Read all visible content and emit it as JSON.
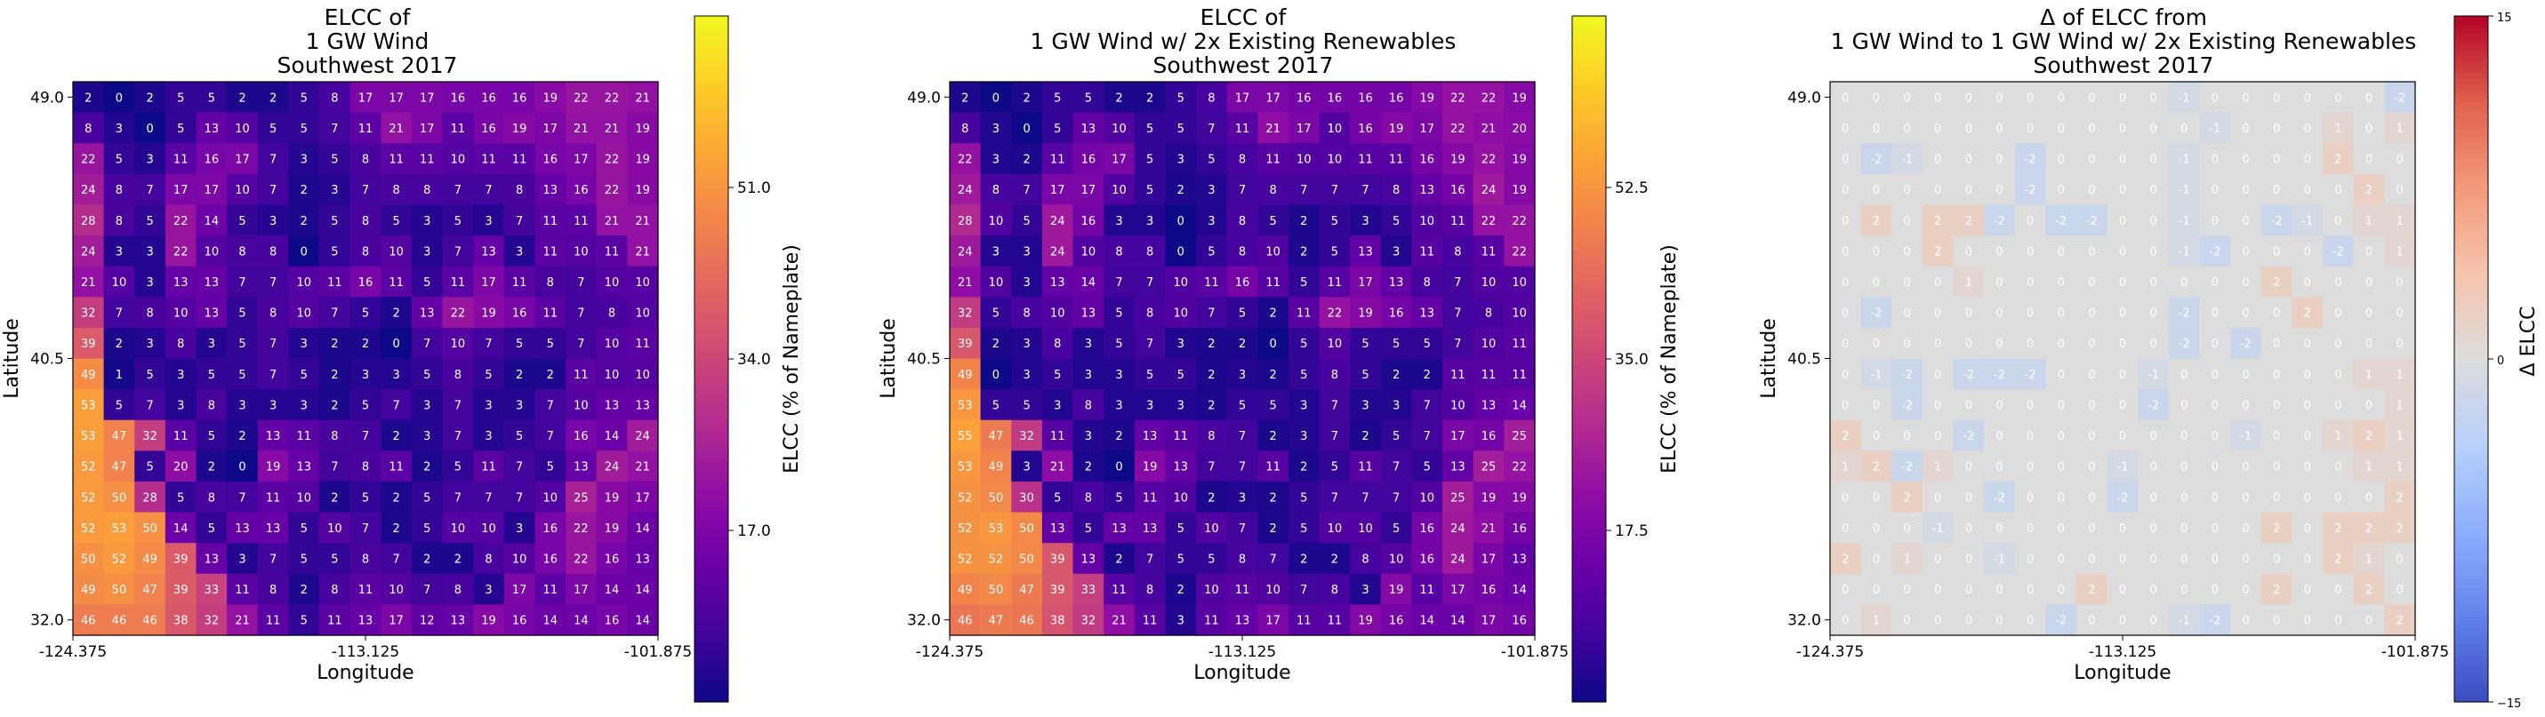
{
  "chart_data": [
    {
      "type": "heatmap",
      "title": [
        "ELCC of",
        "1 GW Wind",
        "Southwest 2017"
      ],
      "xlabel": "Longitude",
      "ylabel": "Latitude",
      "x_ticks": [
        "-124.375",
        "-113.125",
        "-101.875"
      ],
      "y_ticks": [
        "49.0",
        "40.5",
        "32.0"
      ],
      "colormap": "plasma",
      "colorbar": {
        "label": "ELCC (% of Nameplate)",
        "range": [
          0,
          68
        ],
        "ticks": [
          "17.0",
          "34.0",
          "51.0"
        ]
      },
      "rows": [
        [
          2,
          0,
          2,
          5,
          5,
          2,
          2,
          5,
          8,
          17,
          17,
          17,
          16,
          16,
          16,
          19,
          22,
          22,
          21
        ],
        [
          8,
          3,
          0,
          5,
          13,
          10,
          5,
          5,
          7,
          11,
          21,
          17,
          11,
          16,
          19,
          17,
          21,
          21,
          19
        ],
        [
          22,
          5,
          3,
          11,
          16,
          17,
          7,
          3,
          5,
          8,
          11,
          11,
          10,
          11,
          11,
          16,
          17,
          22,
          19
        ],
        [
          24,
          8,
          7,
          17,
          17,
          10,
          7,
          2,
          3,
          7,
          8,
          8,
          7,
          7,
          8,
          13,
          16,
          22,
          19
        ],
        [
          28,
          8,
          5,
          22,
          14,
          5,
          3,
          2,
          5,
          8,
          5,
          3,
          5,
          3,
          7,
          11,
          11,
          21,
          21
        ],
        [
          24,
          3,
          3,
          22,
          10,
          8,
          8,
          0,
          5,
          8,
          10,
          3,
          7,
          13,
          3,
          11,
          10,
          11,
          21
        ],
        [
          21,
          10,
          3,
          13,
          13,
          7,
          7,
          10,
          11,
          16,
          11,
          5,
          11,
          17,
          11,
          8,
          7,
          10,
          10
        ],
        [
          32,
          7,
          8,
          10,
          13,
          5,
          8,
          10,
          7,
          5,
          2,
          13,
          22,
          19,
          16,
          11,
          7,
          8,
          10
        ],
        [
          39,
          2,
          3,
          8,
          3,
          5,
          7,
          3,
          2,
          2,
          0,
          7,
          10,
          7,
          5,
          5,
          7,
          10,
          11
        ],
        [
          49,
          1,
          5,
          3,
          5,
          5,
          7,
          5,
          2,
          3,
          3,
          5,
          8,
          5,
          2,
          2,
          11,
          10,
          10
        ],
        [
          53,
          5,
          7,
          3,
          8,
          3,
          3,
          3,
          2,
          5,
          7,
          3,
          7,
          3,
          3,
          7,
          10,
          13,
          13
        ],
        [
          53,
          47,
          32,
          11,
          5,
          2,
          13,
          11,
          8,
          7,
          2,
          3,
          7,
          3,
          5,
          7,
          16,
          14,
          24
        ],
        [
          52,
          47,
          5,
          20,
          2,
          0,
          19,
          13,
          7,
          8,
          11,
          2,
          5,
          11,
          7,
          5,
          13,
          24,
          21
        ],
        [
          52,
          50,
          28,
          5,
          8,
          7,
          11,
          10,
          2,
          5,
          2,
          5,
          7,
          7,
          7,
          10,
          25,
          19,
          17
        ],
        [
          52,
          53,
          50,
          14,
          5,
          13,
          13,
          5,
          10,
          7,
          2,
          5,
          10,
          10,
          3,
          16,
          22,
          19,
          14
        ],
        [
          50,
          52,
          49,
          39,
          13,
          3,
          7,
          5,
          5,
          8,
          7,
          2,
          2,
          8,
          10,
          16,
          22,
          16,
          13
        ],
        [
          49,
          50,
          47,
          39,
          33,
          11,
          8,
          2,
          8,
          11,
          10,
          7,
          8,
          3,
          17,
          11,
          17,
          14,
          14
        ],
        [
          46,
          46,
          46,
          38,
          32,
          21,
          11,
          5,
          11,
          13,
          17,
          12,
          13,
          19,
          16,
          14,
          14,
          16,
          14
        ]
      ]
    },
    {
      "type": "heatmap",
      "title": [
        "ELCC of",
        "1 GW Wind w/ 2x Existing Renewables",
        "Southwest 2017"
      ],
      "xlabel": "Longitude",
      "ylabel": "Latitude",
      "x_ticks": [
        "-124.375",
        "-113.125",
        "-101.875"
      ],
      "y_ticks": [
        "49.0",
        "40.5",
        "32.0"
      ],
      "colormap": "plasma",
      "colorbar": {
        "label": "ELCC (% of Nameplate)",
        "range": [
          0,
          70
        ],
        "ticks": [
          "17.5",
          "35.0",
          "52.5"
        ]
      },
      "rows": [
        [
          2,
          0,
          2,
          5,
          5,
          2,
          2,
          5,
          8,
          17,
          17,
          16,
          16,
          16,
          16,
          19,
          22,
          22,
          19
        ],
        [
          8,
          3,
          0,
          5,
          13,
          10,
          5,
          5,
          7,
          11,
          21,
          17,
          10,
          16,
          19,
          17,
          22,
          21,
          20
        ],
        [
          22,
          3,
          2,
          11,
          16,
          17,
          5,
          3,
          5,
          8,
          11,
          10,
          10,
          11,
          11,
          16,
          19,
          22,
          19
        ],
        [
          24,
          8,
          7,
          17,
          17,
          10,
          5,
          2,
          3,
          7,
          8,
          7,
          7,
          7,
          8,
          13,
          16,
          24,
          19
        ],
        [
          28,
          10,
          5,
          24,
          16,
          3,
          3,
          0,
          3,
          8,
          5,
          2,
          5,
          3,
          5,
          10,
          11,
          22,
          22
        ],
        [
          24,
          3,
          3,
          24,
          10,
          8,
          8,
          0,
          5,
          8,
          10,
          2,
          5,
          13,
          3,
          11,
          8,
          11,
          22
        ],
        [
          21,
          10,
          3,
          13,
          14,
          7,
          7,
          10,
          11,
          16,
          11,
          5,
          11,
          17,
          13,
          8,
          7,
          10,
          10
        ],
        [
          32,
          5,
          8,
          10,
          13,
          5,
          8,
          10,
          7,
          5,
          2,
          11,
          22,
          19,
          16,
          13,
          7,
          8,
          10
        ],
        [
          39,
          2,
          3,
          8,
          3,
          5,
          7,
          3,
          2,
          2,
          0,
          5,
          10,
          5,
          5,
          5,
          7,
          10,
          11
        ],
        [
          49,
          0,
          3,
          5,
          3,
          3,
          5,
          5,
          2,
          3,
          2,
          5,
          8,
          5,
          2,
          2,
          11,
          11,
          11
        ],
        [
          53,
          5,
          5,
          3,
          8,
          3,
          3,
          3,
          2,
          5,
          5,
          3,
          7,
          3,
          3,
          7,
          10,
          13,
          14
        ],
        [
          55,
          47,
          32,
          11,
          3,
          2,
          13,
          11,
          8,
          7,
          2,
          3,
          7,
          2,
          5,
          7,
          17,
          16,
          25
        ],
        [
          53,
          49,
          3,
          21,
          2,
          0,
          19,
          13,
          7,
          7,
          11,
          2,
          5,
          11,
          7,
          5,
          13,
          25,
          22
        ],
        [
          52,
          50,
          30,
          5,
          8,
          5,
          11,
          10,
          2,
          3,
          2,
          5,
          7,
          7,
          7,
          10,
          25,
          19,
          19
        ],
        [
          52,
          53,
          50,
          13,
          5,
          13,
          13,
          5,
          10,
          7,
          2,
          5,
          10,
          10,
          5,
          16,
          24,
          21,
          16
        ],
        [
          52,
          52,
          50,
          39,
          13,
          2,
          7,
          5,
          5,
          8,
          7,
          2,
          2,
          8,
          10,
          16,
          24,
          17,
          13
        ],
        [
          49,
          50,
          47,
          39,
          33,
          11,
          8,
          2,
          10,
          11,
          10,
          7,
          8,
          3,
          19,
          11,
          17,
          16,
          14
        ],
        [
          46,
          47,
          46,
          38,
          32,
          21,
          11,
          3,
          11,
          13,
          17,
          11,
          11,
          19,
          16,
          14,
          14,
          17,
          16
        ]
      ]
    },
    {
      "type": "heatmap",
      "title": [
        "Δ of ELCC from",
        "1 GW Wind to 1 GW Wind w/ 2x Existing Renewables",
        "Southwest 2017"
      ],
      "xlabel": "Longitude",
      "ylabel": "Latitude",
      "x_ticks": [
        "-124.375",
        "-113.125",
        "-101.875"
      ],
      "y_ticks": [
        "49.0",
        "40.5",
        "32.0"
      ],
      "colormap": "coolwarm",
      "colorbar": {
        "label": "Δ ELCC",
        "range": [
          -15,
          15
        ],
        "ticks": [
          "−15",
          "0",
          "15"
        ]
      },
      "rows": [
        [
          0,
          0,
          0,
          0,
          0,
          0,
          0,
          0,
          0,
          0,
          0,
          -1,
          0,
          0,
          0,
          0,
          0,
          0,
          -2
        ],
        [
          0,
          0,
          0,
          0,
          0,
          0,
          0,
          0,
          0,
          0,
          0,
          0,
          -1,
          0,
          0,
          0,
          1,
          0,
          1
        ],
        [
          0,
          -2,
          -1,
          0,
          0,
          0,
          -2,
          0,
          0,
          0,
          0,
          -1,
          0,
          0,
          0,
          0,
          2,
          0,
          0
        ],
        [
          0,
          0,
          0,
          0,
          0,
          0,
          -2,
          0,
          0,
          0,
          0,
          -1,
          0,
          0,
          0,
          0,
          0,
          2,
          0
        ],
        [
          0,
          2,
          0,
          2,
          2,
          -2,
          0,
          -2,
          -2,
          0,
          0,
          -1,
          0,
          0,
          -2,
          -1,
          0,
          1,
          1
        ],
        [
          0,
          0,
          0,
          2,
          0,
          0,
          0,
          0,
          0,
          0,
          0,
          -1,
          -2,
          0,
          0,
          0,
          -2,
          0,
          1
        ],
        [
          0,
          0,
          0,
          0,
          1,
          0,
          0,
          0,
          0,
          0,
          0,
          0,
          0,
          0,
          2,
          0,
          0,
          0,
          0
        ],
        [
          0,
          -2,
          0,
          0,
          0,
          0,
          0,
          0,
          0,
          0,
          0,
          -2,
          0,
          0,
          0,
          2,
          0,
          0,
          0
        ],
        [
          0,
          0,
          0,
          0,
          0,
          0,
          0,
          0,
          0,
          0,
          0,
          -2,
          0,
          -2,
          0,
          0,
          0,
          0,
          0
        ],
        [
          0,
          -1,
          -2,
          0,
          -2,
          -2,
          -2,
          0,
          0,
          0,
          -1,
          0,
          0,
          0,
          0,
          0,
          0,
          1,
          1
        ],
        [
          0,
          0,
          -2,
          0,
          0,
          0,
          0,
          0,
          0,
          0,
          -2,
          0,
          0,
          0,
          0,
          0,
          0,
          0,
          1
        ],
        [
          2,
          0,
          0,
          0,
          -2,
          0,
          0,
          0,
          0,
          0,
          0,
          0,
          0,
          -1,
          0,
          0,
          1,
          2,
          1
        ],
        [
          1,
          2,
          -2,
          1,
          0,
          0,
          0,
          0,
          0,
          -1,
          0,
          0,
          0,
          0,
          0,
          0,
          0,
          1,
          1
        ],
        [
          0,
          0,
          2,
          0,
          0,
          -2,
          0,
          0,
          0,
          -2,
          0,
          0,
          0,
          0,
          0,
          0,
          0,
          0,
          2
        ],
        [
          0,
          0,
          0,
          -1,
          0,
          0,
          0,
          0,
          0,
          0,
          0,
          0,
          0,
          0,
          2,
          0,
          2,
          2,
          2
        ],
        [
          2,
          0,
          1,
          0,
          0,
          -1,
          0,
          0,
          0,
          0,
          0,
          0,
          0,
          0,
          0,
          0,
          2,
          1,
          0
        ],
        [
          0,
          0,
          0,
          0,
          0,
          0,
          0,
          0,
          2,
          0,
          0,
          0,
          0,
          0,
          2,
          0,
          0,
          2,
          0
        ],
        [
          0,
          1,
          0,
          0,
          0,
          0,
          0,
          -2,
          0,
          0,
          0,
          -1,
          -2,
          0,
          0,
          0,
          0,
          0,
          2
        ]
      ]
    }
  ]
}
